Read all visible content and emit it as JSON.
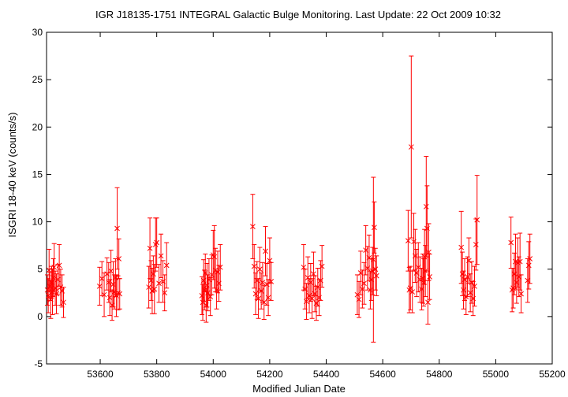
{
  "chart_data": {
    "type": "scatter",
    "title": "IGR J18135-1751   INTEGRAL Galactic Bulge Monitoring.  Last Update: 22 Oct 2009 10:32",
    "xlabel": "Modified Julian Date",
    "ylabel": "ISGRI 18-40 keV (counts/s)",
    "xlim": [
      53410,
      55200
    ],
    "ylim": [
      -5,
      30
    ],
    "xticks": [
      53600,
      53800,
      54000,
      54200,
      54400,
      54600,
      54800,
      55000,
      55200
    ],
    "yticks": [
      -5,
      0,
      5,
      10,
      15,
      20,
      25,
      30
    ],
    "marker": "x",
    "color": "#ff0000",
    "grid": false,
    "legend": "none",
    "series": [
      {
        "points": [
          {
            "x": 53413,
            "y": 2.8,
            "err": 1.6
          },
          {
            "x": 53416,
            "y": 2.2,
            "err": 1.8
          },
          {
            "x": 53419,
            "y": 4.9,
            "err": 2.2
          },
          {
            "x": 53422,
            "y": 3.2,
            "err": 1.5
          },
          {
            "x": 53425,
            "y": 1.8,
            "err": 2.0
          },
          {
            "x": 53428,
            "y": 3.6,
            "err": 1.7
          },
          {
            "x": 53431,
            "y": 2.6,
            "err": 2.4
          },
          {
            "x": 53434,
            "y": 4.1,
            "err": 2.0
          },
          {
            "x": 53437,
            "y": 5.2,
            "err": 2.5
          },
          {
            "x": 53441,
            "y": 3.0,
            "err": 1.8
          },
          {
            "x": 53445,
            "y": 2.4,
            "err": 2.1
          },
          {
            "x": 53450,
            "y": 3.9,
            "err": 1.6
          },
          {
            "x": 53455,
            "y": 5.4,
            "err": 2.2
          },
          {
            "x": 53460,
            "y": 3.1,
            "err": 1.9
          },
          {
            "x": 53465,
            "y": 2.7,
            "err": 1.7
          },
          {
            "x": 53470,
            "y": 1.5,
            "err": 1.6
          },
          {
            "x": 53598,
            "y": 3.2,
            "err": 2.0
          },
          {
            "x": 53606,
            "y": 4.0,
            "err": 1.8
          },
          {
            "x": 53614,
            "y": 2.3,
            "err": 2.3
          },
          {
            "x": 53624,
            "y": 4.5,
            "err": 1.7
          },
          {
            "x": 53630,
            "y": 3.6,
            "err": 2.1
          },
          {
            "x": 53634,
            "y": 2.0,
            "err": 1.9
          },
          {
            "x": 53638,
            "y": 4.8,
            "err": 2.2
          },
          {
            "x": 53642,
            "y": 1.2,
            "err": 1.6
          },
          {
            "x": 53646,
            "y": 3.4,
            "err": 2.4
          },
          {
            "x": 53650,
            "y": 2.6,
            "err": 1.8
          },
          {
            "x": 53654,
            "y": 4.1,
            "err": 2.0
          },
          {
            "x": 53657,
            "y": 2.2,
            "err": 2.2
          },
          {
            "x": 53660,
            "y": 9.3,
            "err": 4.3
          },
          {
            "x": 53663,
            "y": 2.5,
            "err": 1.8
          },
          {
            "x": 53666,
            "y": 6.1,
            "err": 2.1
          },
          {
            "x": 53669,
            "y": 2.4,
            "err": 1.6
          },
          {
            "x": 53772,
            "y": 3.1,
            "err": 2.2
          },
          {
            "x": 53776,
            "y": 7.2,
            "err": 3.2
          },
          {
            "x": 53780,
            "y": 3.8,
            "err": 2.1
          },
          {
            "x": 53784,
            "y": 2.7,
            "err": 2.4
          },
          {
            "x": 53788,
            "y": 4.5,
            "err": 1.9
          },
          {
            "x": 53792,
            "y": 2.9,
            "err": 2.6
          },
          {
            "x": 53796,
            "y": 7.6,
            "err": 2.8
          },
          {
            "x": 53800,
            "y": 7.8,
            "err": 2.6
          },
          {
            "x": 53808,
            "y": 3.5,
            "err": 2.0
          },
          {
            "x": 53815,
            "y": 6.4,
            "err": 2.3
          },
          {
            "x": 53822,
            "y": 3.7,
            "err": 2.2
          },
          {
            "x": 53828,
            "y": 2.5,
            "err": 1.9
          },
          {
            "x": 53835,
            "y": 5.4,
            "err": 2.4
          },
          {
            "x": 53960,
            "y": 2.2,
            "err": 2.0
          },
          {
            "x": 53963,
            "y": 1.5,
            "err": 1.9
          },
          {
            "x": 53966,
            "y": 3.8,
            "err": 2.2
          },
          {
            "x": 53969,
            "y": 2.8,
            "err": 2.1
          },
          {
            "x": 53972,
            "y": 4.6,
            "err": 2.0
          },
          {
            "x": 53975,
            "y": 1.2,
            "err": 1.8
          },
          {
            "x": 53978,
            "y": 3.3,
            "err": 2.3
          },
          {
            "x": 53981,
            "y": 2.5,
            "err": 1.9
          },
          {
            "x": 53985,
            "y": 3.9,
            "err": 2.2
          },
          {
            "x": 53990,
            "y": 2.1,
            "err": 2.0
          },
          {
            "x": 53995,
            "y": 4.4,
            "err": 2.1
          },
          {
            "x": 54000,
            "y": 6.5,
            "err": 2.6
          },
          {
            "x": 54004,
            "y": 6.3,
            "err": 3.3
          },
          {
            "x": 54008,
            "y": 4.9,
            "err": 2.3
          },
          {
            "x": 54012,
            "y": 2.8,
            "err": 2.0
          },
          {
            "x": 54016,
            "y": 4.7,
            "err": 2.2
          },
          {
            "x": 54020,
            "y": 3.5,
            "err": 1.9
          },
          {
            "x": 54025,
            "y": 5.2,
            "err": 2.4
          },
          {
            "x": 54140,
            "y": 9.5,
            "err": 3.4
          },
          {
            "x": 54145,
            "y": 5.3,
            "err": 2.3
          },
          {
            "x": 54150,
            "y": 2.4,
            "err": 2.2
          },
          {
            "x": 54155,
            "y": 3.8,
            "err": 2.0
          },
          {
            "x": 54160,
            "y": 1.9,
            "err": 2.1
          },
          {
            "x": 54165,
            "y": 5.0,
            "err": 2.3
          },
          {
            "x": 54170,
            "y": 2.7,
            "err": 1.9
          },
          {
            "x": 54175,
            "y": 3.6,
            "err": 2.1
          },
          {
            "x": 54180,
            "y": 1.5,
            "err": 1.8
          },
          {
            "x": 54185,
            "y": 6.9,
            "err": 2.6
          },
          {
            "x": 54190,
            "y": 3.4,
            "err": 2.2
          },
          {
            "x": 54195,
            "y": 2.0,
            "err": 1.9
          },
          {
            "x": 54200,
            "y": 5.9,
            "err": 2.4
          },
          {
            "x": 54205,
            "y": 3.7,
            "err": 2.0
          },
          {
            "x": 54320,
            "y": 5.2,
            "err": 2.4
          },
          {
            "x": 54325,
            "y": 2.9,
            "err": 2.1
          },
          {
            "x": 54330,
            "y": 1.6,
            "err": 1.9
          },
          {
            "x": 54335,
            "y": 4.1,
            "err": 2.2
          },
          {
            "x": 54340,
            "y": 2.2,
            "err": 1.8
          },
          {
            "x": 54345,
            "y": 3.6,
            "err": 2.0
          },
          {
            "x": 54350,
            "y": 1.9,
            "err": 2.1
          },
          {
            "x": 54355,
            "y": 4.5,
            "err": 2.3
          },
          {
            "x": 54360,
            "y": 2.4,
            "err": 1.9
          },
          {
            "x": 54365,
            "y": 1.4,
            "err": 1.8
          },
          {
            "x": 54370,
            "y": 3.1,
            "err": 2.0
          },
          {
            "x": 54375,
            "y": 2.0,
            "err": 1.9
          },
          {
            "x": 54380,
            "y": 3.8,
            "err": 2.1
          },
          {
            "x": 54385,
            "y": 5.3,
            "err": 2.2
          },
          {
            "x": 54510,
            "y": 2.3,
            "err": 2.1
          },
          {
            "x": 54516,
            "y": 1.8,
            "err": 1.9
          },
          {
            "x": 54522,
            "y": 4.6,
            "err": 2.3
          },
          {
            "x": 54528,
            "y": 2.9,
            "err": 2.0
          },
          {
            "x": 54534,
            "y": 3.5,
            "err": 2.2
          },
          {
            "x": 54540,
            "y": 7.0,
            "err": 2.6
          },
          {
            "x": 54546,
            "y": 5.1,
            "err": 2.3
          },
          {
            "x": 54552,
            "y": 6.2,
            "err": 2.4
          },
          {
            "x": 54556,
            "y": 2.8,
            "err": 2.0
          },
          {
            "x": 54560,
            "y": 3.9,
            "err": 2.2
          },
          {
            "x": 54564,
            "y": 4.8,
            "err": 2.5
          },
          {
            "x": 54567,
            "y": 6.0,
            "err": 8.7
          },
          {
            "x": 54570,
            "y": 9.4,
            "err": 2.7
          },
          {
            "x": 54574,
            "y": 5.0,
            "err": 2.2
          },
          {
            "x": 54578,
            "y": 4.3,
            "err": 2.1
          },
          {
            "x": 54690,
            "y": 8.0,
            "err": 3.2
          },
          {
            "x": 54694,
            "y": 2.8,
            "err": 2.4
          },
          {
            "x": 54698,
            "y": 3.0,
            "err": 2.3
          },
          {
            "x": 54701,
            "y": 17.9,
            "err": 9.6
          },
          {
            "x": 54705,
            "y": 2.6,
            "err": 2.2
          },
          {
            "x": 54710,
            "y": 7.9,
            "err": 3.0
          },
          {
            "x": 54715,
            "y": 6.4,
            "err": 2.8
          },
          {
            "x": 54720,
            "y": 4.6,
            "err": 2.5
          },
          {
            "x": 54726,
            "y": 5.2,
            "err": 2.6
          },
          {
            "x": 54732,
            "y": 3.9,
            "err": 2.4
          },
          {
            "x": 54738,
            "y": 2.9,
            "err": 2.2
          },
          {
            "x": 54742,
            "y": 4.0,
            "err": 2.6
          },
          {
            "x": 54745,
            "y": 3.6,
            "err": 2.5
          },
          {
            "x": 54748,
            "y": 6.3,
            "err": 2.9
          },
          {
            "x": 54751,
            "y": 4.8,
            "err": 2.7
          },
          {
            "x": 54754,
            "y": 11.6,
            "err": 5.3
          },
          {
            "x": 54757,
            "y": 9.3,
            "err": 4.5
          },
          {
            "x": 54760,
            "y": 1.5,
            "err": 2.3
          },
          {
            "x": 54763,
            "y": 6.8,
            "err": 3.0
          },
          {
            "x": 54766,
            "y": 4.2,
            "err": 2.4
          },
          {
            "x": 54878,
            "y": 7.3,
            "err": 3.8
          },
          {
            "x": 54882,
            "y": 4.5,
            "err": 2.3
          },
          {
            "x": 54886,
            "y": 2.8,
            "err": 2.0
          },
          {
            "x": 54890,
            "y": 3.9,
            "err": 2.2
          },
          {
            "x": 54895,
            "y": 2.1,
            "err": 1.9
          },
          {
            "x": 54900,
            "y": 4.2,
            "err": 2.1
          },
          {
            "x": 54905,
            "y": 5.9,
            "err": 2.4
          },
          {
            "x": 54910,
            "y": 2.5,
            "err": 2.0
          },
          {
            "x": 54915,
            "y": 3.6,
            "err": 2.2
          },
          {
            "x": 54920,
            "y": 1.9,
            "err": 1.8
          },
          {
            "x": 54925,
            "y": 3.2,
            "err": 2.1
          },
          {
            "x": 54930,
            "y": 7.6,
            "err": 2.7
          },
          {
            "x": 54934,
            "y": 10.2,
            "err": 4.7
          },
          {
            "x": 55054,
            "y": 7.8,
            "err": 2.7
          },
          {
            "x": 55058,
            "y": 2.8,
            "err": 2.3
          },
          {
            "x": 55062,
            "y": 3.0,
            "err": 2.1
          },
          {
            "x": 55066,
            "y": 4.5,
            "err": 2.2
          },
          {
            "x": 55070,
            "y": 5.8,
            "err": 2.9
          },
          {
            "x": 55074,
            "y": 3.6,
            "err": 2.2
          },
          {
            "x": 55078,
            "y": 5.7,
            "err": 2.6
          },
          {
            "x": 55082,
            "y": 4.2,
            "err": 2.1
          },
          {
            "x": 55086,
            "y": 5.8,
            "err": 3.0
          },
          {
            "x": 55090,
            "y": 2.4,
            "err": 2.0
          },
          {
            "x": 55113,
            "y": 3.8,
            "err": 2.3
          },
          {
            "x": 55117,
            "y": 5.4,
            "err": 2.5
          },
          {
            "x": 55121,
            "y": 6.1,
            "err": 2.6
          }
        ]
      }
    ]
  }
}
